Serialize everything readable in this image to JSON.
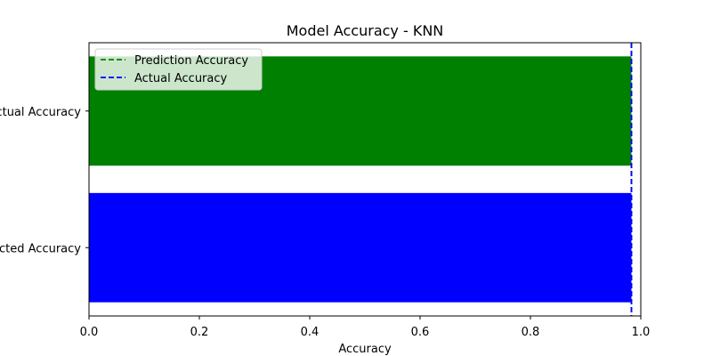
{
  "chart_data": {
    "type": "bar",
    "orientation": "horizontal",
    "title": "Model Accuracy - KNN",
    "xlabel": "Accuracy",
    "ylabel": "",
    "xlim": [
      0.0,
      1.0
    ],
    "xticks": [
      "0.0",
      "0.2",
      "0.4",
      "0.6",
      "0.8",
      "1.0"
    ],
    "categories": [
      "Predicted Accuracy",
      "Actual Accuracy"
    ],
    "values": [
      0.983,
      0.983
    ],
    "bar_colors": [
      "#0000ff",
      "#008000"
    ],
    "reference_lines": [
      {
        "name": "Prediction Accuracy",
        "value": 0.983,
        "color": "#008000",
        "style": "dashed"
      },
      {
        "name": "Actual Accuracy",
        "value": 0.983,
        "color": "#0000ff",
        "style": "dashed"
      }
    ],
    "legend": {
      "placement": "top-left",
      "entries": [
        {
          "label": "Prediction Accuracy",
          "color": "#008000",
          "style": "dashed"
        },
        {
          "label": "Actual Accuracy",
          "color": "#0000ff",
          "style": "dashed"
        }
      ]
    },
    "grid": false
  }
}
